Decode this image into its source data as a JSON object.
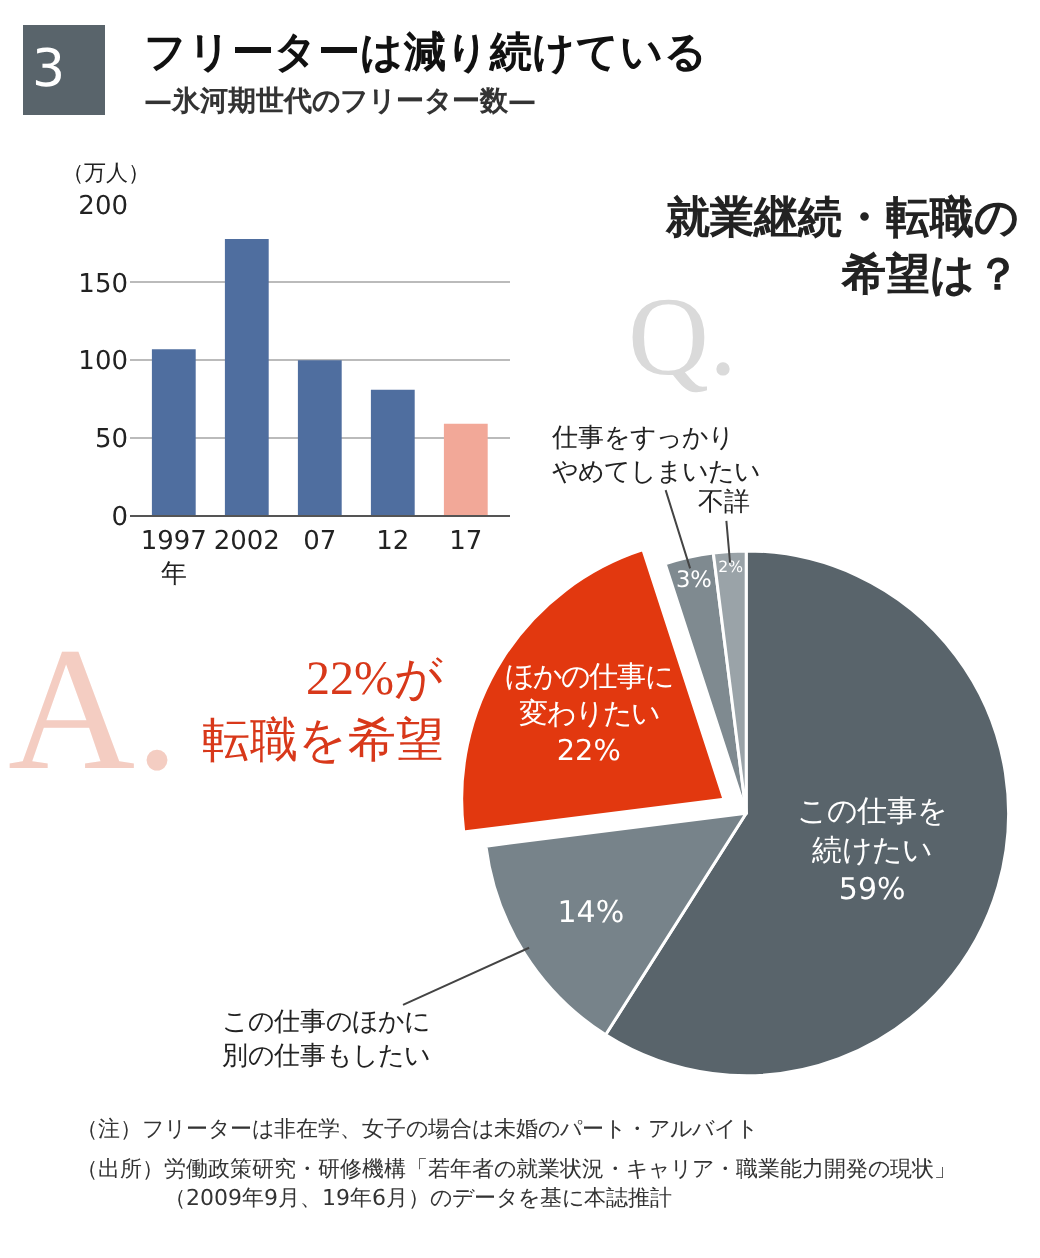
{
  "chart_data": [
    {
      "type": "bar",
      "title": "フリーターは減り続けている",
      "subtitle": "—氷河期世代のフリーター数—",
      "ylabel": "（万人）",
      "categories": [
        "1997\n年",
        "2002",
        "07",
        "12",
        "17"
      ],
      "values": [
        107,
        178,
        100,
        81,
        59
      ],
      "colors": [
        "#4f6e9f",
        "#4f6e9f",
        "#4f6e9f",
        "#4f6e9f",
        "#f2a898"
      ],
      "ylim": [
        0,
        200
      ],
      "yticks": [
        0,
        50,
        100,
        150,
        200
      ],
      "grid": "y",
      "annotations": [
        "3"
      ]
    },
    {
      "type": "pie",
      "title": "就業継続・転職の希望は？",
      "categories": [
        "この仕事を続けたい",
        "この仕事のほかに別の仕事もしたい",
        "ほかの仕事に変わりたい",
        "仕事をすっかりやめてしまいたい",
        "不詳"
      ],
      "values": [
        59,
        14,
        22,
        3,
        2
      ],
      "value_labels": [
        "59%",
        "14%",
        "22%",
        "3%",
        "2%"
      ],
      "colors": [
        "#59646b",
        "#77838a",
        "#e2380f",
        "#7f8a90",
        "#9aa3a8"
      ],
      "annotations": [
        "Q.",
        "A.",
        "22%が転職を希望",
        "（注）フリーターは非在学、女子の場合は未婚のパート・アルバイト",
        "（出所）労働政策研究・研修機構「若年者の就業状況・キャリア・職業能力開発の現状」（2009年9月、19年6月）のデータを基に本誌推計"
      ]
    }
  ]
}
